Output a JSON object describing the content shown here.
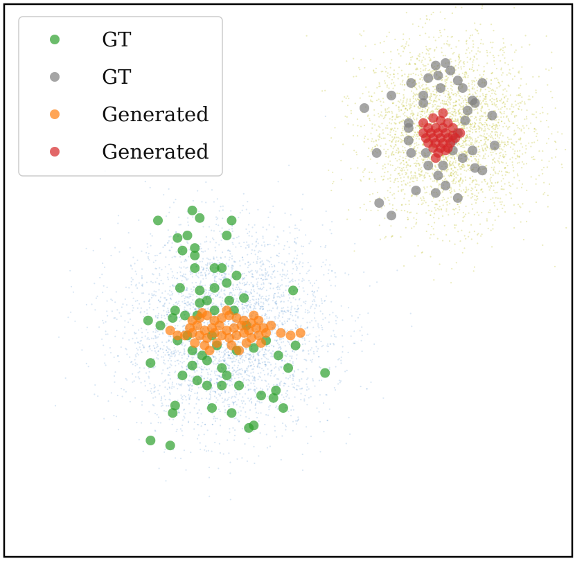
{
  "chart_data": {
    "type": "scatter",
    "title": "",
    "xlabel": "",
    "ylabel": "",
    "xlim": [
      -4.5,
      7.0
    ],
    "ylim": [
      -4.5,
      6.5
    ],
    "grid": false,
    "axis_ticks": false,
    "legend": {
      "position": "top-left",
      "entries": [
        {
          "label": "GT",
          "series": "gt-green"
        },
        {
          "label": "GT",
          "series": "gt-gray"
        },
        {
          "label": "Generated",
          "series": "generated-orange"
        },
        {
          "label": "Generated",
          "series": "generated-red"
        }
      ]
    },
    "background_clouds": [
      {
        "id": "cloud-blue",
        "color": "#4c8fcf",
        "center": [
          0.0,
          0.0
        ],
        "spread": [
          1.05,
          1.0
        ],
        "approx_points": 3500,
        "point_alpha": 0.22
      },
      {
        "id": "cloud-olive",
        "color": "#bcbd22",
        "center": [
          4.5,
          4.0
        ],
        "spread": [
          0.85,
          0.9
        ],
        "approx_points": 3000,
        "point_alpha": 0.3
      }
    ],
    "series": [
      {
        "id": "gt-green",
        "name": "GT",
        "color": "#2ca02c",
        "alpha": 0.7,
        "points": [
          [
            -1.4,
            2.2
          ],
          [
            -0.7,
            2.4
          ],
          [
            -0.55,
            2.25
          ],
          [
            0.1,
            2.2
          ],
          [
            -1.0,
            1.85
          ],
          [
            -0.8,
            1.9
          ],
          [
            0.0,
            1.9
          ],
          [
            -0.9,
            1.6
          ],
          [
            -0.65,
            1.65
          ],
          [
            -0.65,
            1.5
          ],
          [
            -0.25,
            1.25
          ],
          [
            -0.1,
            1.25
          ],
          [
            -0.65,
            1.25
          ],
          [
            -0.95,
            0.85
          ],
          [
            -0.55,
            0.8
          ],
          [
            -0.25,
            0.85
          ],
          [
            0.2,
            1.1
          ],
          [
            0.0,
            0.95
          ],
          [
            -0.4,
            0.6
          ],
          [
            0.05,
            0.6
          ],
          [
            -0.55,
            0.55
          ],
          [
            0.35,
            0.65
          ],
          [
            -1.05,
            0.4
          ],
          [
            -0.85,
            0.3
          ],
          [
            -0.6,
            0.3
          ],
          [
            -0.25,
            0.4
          ],
          [
            0.15,
            0.4
          ],
          [
            -1.6,
            0.2
          ],
          [
            -1.35,
            0.1
          ],
          [
            -1.1,
            0.25
          ],
          [
            -1.0,
            -0.2
          ],
          [
            -0.7,
            -0.4
          ],
          [
            -0.5,
            -0.5
          ],
          [
            -0.2,
            -0.3
          ],
          [
            0.2,
            -0.4
          ],
          [
            0.55,
            -0.35
          ],
          [
            0.8,
            -0.2
          ],
          [
            1.05,
            -0.5
          ],
          [
            1.4,
            -0.3
          ],
          [
            1.35,
            0.8
          ],
          [
            1.25,
            -0.75
          ],
          [
            2.0,
            -0.85
          ],
          [
            -1.55,
            -0.65
          ],
          [
            -0.9,
            -0.9
          ],
          [
            -0.7,
            -0.7
          ],
          [
            -0.4,
            -0.6
          ],
          [
            -0.1,
            -0.75
          ],
          [
            0.0,
            -0.9
          ],
          [
            -0.6,
            -1.0
          ],
          [
            -0.4,
            -1.1
          ],
          [
            -0.1,
            -1.1
          ],
          [
            0.25,
            -1.1
          ],
          [
            0.7,
            -1.3
          ],
          [
            1.0,
            -1.2
          ],
          [
            1.15,
            -1.55
          ],
          [
            0.95,
            -1.35
          ],
          [
            -1.05,
            -1.5
          ],
          [
            -1.1,
            -1.65
          ],
          [
            -0.3,
            -1.55
          ],
          [
            0.1,
            -1.65
          ],
          [
            0.45,
            -1.95
          ],
          [
            0.55,
            -1.9
          ],
          [
            -1.55,
            -2.2
          ],
          [
            -1.15,
            -2.3
          ],
          [
            -0.3,
            -0.1
          ],
          [
            -0.8,
            -0.1
          ],
          [
            0.4,
            0.1
          ]
        ]
      },
      {
        "id": "gt-gray",
        "name": "GT",
        "color": "#7f7f7f",
        "alpha": 0.7,
        "points": [
          [
            4.25,
            5.3
          ],
          [
            4.45,
            5.35
          ],
          [
            4.55,
            5.2
          ],
          [
            4.1,
            5.05
          ],
          [
            4.3,
            5.1
          ],
          [
            4.7,
            5.0
          ],
          [
            5.2,
            4.95
          ],
          [
            3.75,
            4.95
          ],
          [
            4.35,
            4.85
          ],
          [
            4.8,
            4.85
          ],
          [
            3.35,
            4.7
          ],
          [
            4.0,
            4.7
          ],
          [
            5.0,
            4.6
          ],
          [
            2.8,
            4.45
          ],
          [
            4.0,
            4.55
          ],
          [
            5.05,
            4.55
          ],
          [
            4.9,
            4.4
          ],
          [
            5.4,
            4.3
          ],
          [
            3.7,
            4.15
          ],
          [
            4.85,
            4.2
          ],
          [
            3.7,
            4.05
          ],
          [
            4.7,
            3.95
          ],
          [
            5.45,
            3.7
          ],
          [
            3.05,
            3.55
          ],
          [
            3.7,
            3.8
          ],
          [
            4.6,
            3.8
          ],
          [
            5.0,
            3.6
          ],
          [
            3.75,
            3.55
          ],
          [
            4.05,
            3.55
          ],
          [
            4.8,
            3.45
          ],
          [
            4.4,
            3.3
          ],
          [
            5.05,
            3.25
          ],
          [
            5.2,
            3.2
          ],
          [
            4.1,
            3.3
          ],
          [
            4.3,
            3.1
          ],
          [
            4.45,
            2.9
          ],
          [
            3.85,
            2.8
          ],
          [
            4.25,
            2.75
          ],
          [
            4.7,
            2.65
          ],
          [
            3.1,
            2.55
          ],
          [
            3.35,
            2.3
          ],
          [
            4.6,
            3.6
          ]
        ]
      },
      {
        "id": "generated-orange",
        "name": "Generated",
        "color": "#ff7f0e",
        "alpha": 0.7,
        "points": [
          [
            -0.7,
            0.2
          ],
          [
            -0.55,
            0.25
          ],
          [
            -0.4,
            0.3
          ],
          [
            -0.25,
            0.2
          ],
          [
            -0.1,
            0.25
          ],
          [
            0.05,
            0.3
          ],
          [
            0.2,
            0.25
          ],
          [
            0.35,
            0.2
          ],
          [
            0.5,
            0.15
          ],
          [
            0.65,
            0.2
          ],
          [
            -0.75,
            0.05
          ],
          [
            -0.6,
            0.1
          ],
          [
            -0.45,
            0.0
          ],
          [
            -0.3,
            0.05
          ],
          [
            -0.15,
            0.1
          ],
          [
            0.0,
            0.0
          ],
          [
            0.15,
            0.05
          ],
          [
            0.3,
            0.1
          ],
          [
            0.45,
            0.0
          ],
          [
            0.6,
            0.05
          ],
          [
            0.75,
            0.05
          ],
          [
            0.9,
            0.1
          ],
          [
            -0.85,
            -0.1
          ],
          [
            -0.7,
            -0.05
          ],
          [
            -0.55,
            -0.1
          ],
          [
            -0.4,
            -0.15
          ],
          [
            -0.25,
            -0.05
          ],
          [
            -0.1,
            -0.1
          ],
          [
            0.05,
            -0.15
          ],
          [
            0.2,
            -0.1
          ],
          [
            0.35,
            -0.05
          ],
          [
            0.5,
            -0.15
          ],
          [
            0.65,
            -0.1
          ],
          [
            0.8,
            -0.05
          ],
          [
            -0.65,
            -0.25
          ],
          [
            -0.45,
            -0.3
          ],
          [
            -0.2,
            -0.25
          ],
          [
            0.1,
            -0.3
          ],
          [
            0.4,
            -0.25
          ],
          [
            0.7,
            -0.25
          ],
          [
            -1.0,
            -0.1
          ],
          [
            -1.15,
            0.0
          ],
          [
            1.1,
            -0.05
          ],
          [
            1.3,
            -0.1
          ],
          [
            1.5,
            -0.05
          ],
          [
            -0.35,
            -0.4
          ],
          [
            0.0,
            0.4
          ],
          [
            0.25,
            -0.4
          ],
          [
            -0.5,
            0.35
          ],
          [
            0.55,
            0.3
          ]
        ]
      },
      {
        "id": "generated-red",
        "name": "Generated",
        "color": "#d62728",
        "alpha": 0.7,
        "points": [
          [
            4.2,
            4.25
          ],
          [
            4.35,
            4.2
          ],
          [
            4.5,
            4.15
          ],
          [
            4.0,
            4.15
          ],
          [
            4.6,
            4.05
          ],
          [
            4.1,
            4.05
          ],
          [
            4.25,
            4.05
          ],
          [
            4.4,
            4.05
          ],
          [
            4.15,
            3.95
          ],
          [
            4.3,
            3.95
          ],
          [
            4.45,
            3.95
          ],
          [
            4.6,
            3.9
          ],
          [
            4.75,
            3.95
          ],
          [
            4.05,
            3.85
          ],
          [
            4.2,
            3.85
          ],
          [
            4.35,
            3.85
          ],
          [
            4.5,
            3.85
          ],
          [
            4.65,
            3.85
          ],
          [
            4.1,
            3.75
          ],
          [
            4.25,
            3.75
          ],
          [
            4.4,
            3.75
          ],
          [
            4.55,
            3.75
          ],
          [
            4.2,
            3.65
          ],
          [
            4.35,
            3.65
          ],
          [
            4.5,
            3.65
          ],
          [
            4.3,
            3.55
          ],
          [
            4.45,
            3.6
          ],
          [
            4.4,
            4.35
          ],
          [
            4.25,
            3.45
          ],
          [
            4.0,
            3.95
          ]
        ]
      }
    ]
  }
}
